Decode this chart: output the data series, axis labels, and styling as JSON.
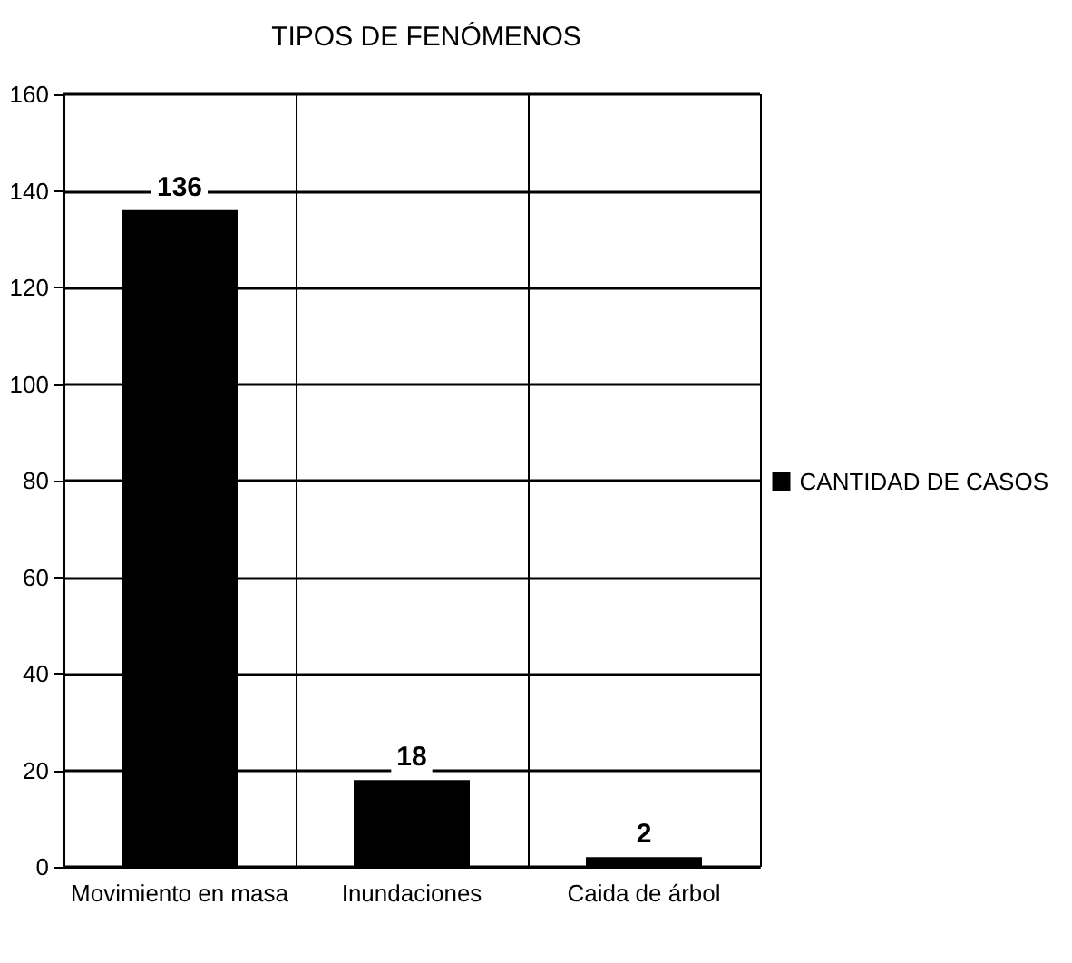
{
  "chart_data": {
    "type": "bar",
    "title": "TIPOS DE FENÓMENOS",
    "categories": [
      "Movimiento en masa",
      "Inundaciones",
      "Caida de árbol"
    ],
    "series": [
      {
        "name": "CANTIDAD DE CASOS",
        "color": "#000000",
        "values": [
          136,
          18,
          2
        ]
      }
    ],
    "ylim": [
      0,
      160
    ],
    "yticks": [
      0,
      20,
      40,
      60,
      80,
      100,
      120,
      140,
      160
    ],
    "grid": true,
    "legend": "right",
    "data_labels": true
  }
}
